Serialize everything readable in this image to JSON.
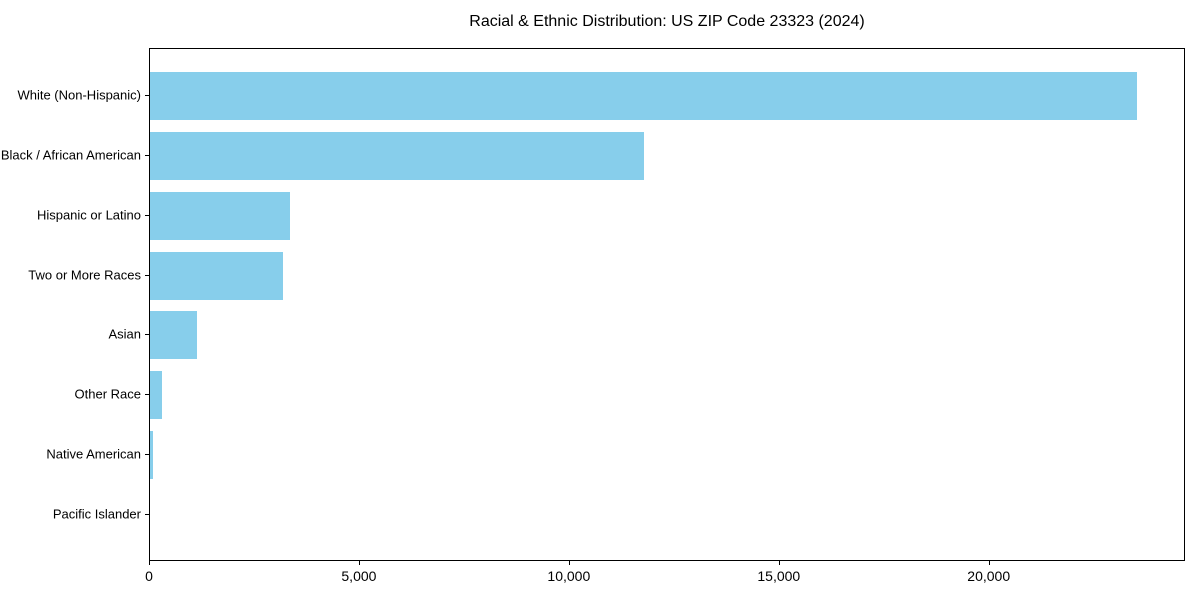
{
  "title": "Racial & Ethnic Distribution: US ZIP Code 23323 (2024)",
  "colors": {
    "bar": "#87CEEB",
    "axis": "#000000",
    "background": "#FFFFFF",
    "text": "#000000"
  },
  "chart_data": {
    "type": "bar",
    "orientation": "horizontal",
    "title": "Racial & Ethnic Distribution: US ZIP Code 23323 (2024)",
    "categories": [
      "White (Non-Hispanic)",
      "Black / African American",
      "Hispanic or Latino",
      "Two or More Races",
      "Asian",
      "Other Race",
      "Native American",
      "Pacific Islander"
    ],
    "values": [
      23500,
      11760,
      3330,
      3170,
      1120,
      290,
      60,
      0
    ],
    "xlabel": "",
    "ylabel": "",
    "xlim": [
      0,
      24675
    ],
    "x_ticks": [
      0,
      5000,
      10000,
      15000,
      20000
    ],
    "x_tick_labels": [
      "0",
      "5,000",
      "10,000",
      "15,000",
      "20,000"
    ],
    "bar_color": "#87CEEB",
    "grid": false,
    "legend": null,
    "bar_height_fraction": 0.8
  }
}
